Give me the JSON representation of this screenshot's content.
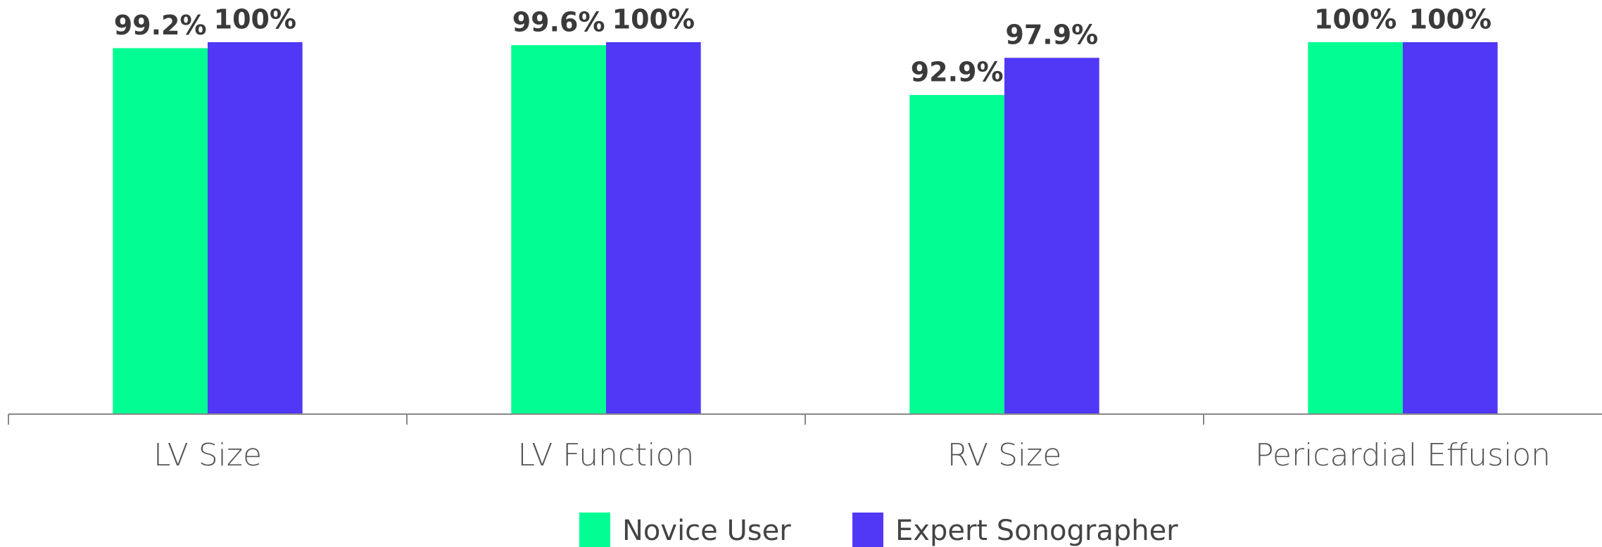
{
  "chart_data": {
    "type": "bar",
    "categories": [
      "LV Size",
      "LV Function",
      "RV Size",
      "Pericardial Effusion"
    ],
    "series": [
      {
        "name": "Novice User",
        "color": "#02fd92",
        "values": [
          99.2,
          99.6,
          92.9,
          100
        ],
        "value_labels": [
          "99.2%",
          "99.6%",
          "92.9%",
          "100%"
        ]
      },
      {
        "name": "Expert Sonographer",
        "color": "#5038f6",
        "values": [
          100,
          100,
          97.9,
          100
        ],
        "value_labels": [
          "100%",
          "100%",
          "97.9%",
          "100%"
        ]
      }
    ],
    "ylim": [
      50,
      100
    ],
    "legend": "bottom"
  }
}
